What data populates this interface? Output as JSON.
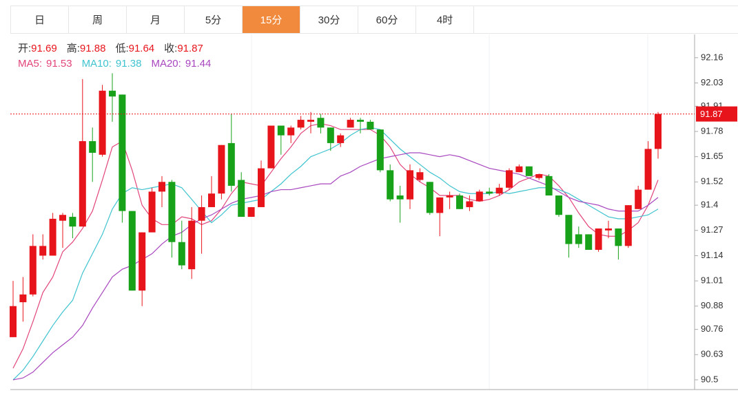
{
  "tabs": [
    "日",
    "周",
    "月",
    "5分",
    "15分",
    "30分",
    "60分",
    "4时"
  ],
  "active_tab": 4,
  "chart_data": {
    "type": "candlestick",
    "ohlc_labels": [
      "开:",
      "高:",
      "低:",
      "收:"
    ],
    "ohlc_values": [
      91.69,
      91.88,
      91.64,
      91.87
    ],
    "up_color": "#e8141c",
    "down_color": "#17a21a",
    "ylim": [
      90.45,
      92.28
    ],
    "yticks": [
      92.16,
      92.03,
      91.91,
      91.78,
      91.65,
      91.52,
      91.4,
      91.27,
      91.14,
      91.01,
      90.88,
      90.76,
      90.63,
      90.5
    ],
    "last_price": 91.87,
    "open": [
      90.72,
      90.9,
      90.94,
      91.14,
      91.14,
      91.32,
      91.34,
      91.29,
      91.73,
      91.66,
      91.99,
      91.97,
      91.37,
      90.96,
      91.26,
      91.47,
      91.52,
      91.21,
      91.07,
      91.32,
      91.39,
      91.46,
      91.72,
      91.53,
      91.34,
      91.39,
      91.59,
      91.81,
      91.76,
      91.8,
      91.83,
      91.85,
      91.8,
      91.72,
      91.8,
      91.84,
      91.83,
      91.79,
      91.58,
      91.45,
      91.43,
      91.53,
      91.52,
      91.36,
      91.44,
      91.45,
      91.39,
      91.42,
      91.47,
      91.46,
      91.49,
      91.57,
      91.6,
      91.54,
      91.55,
      91.45,
      91.35,
      91.25,
      91.25,
      91.17,
      91.27,
      91.28,
      91.19,
      91.38,
      91.48,
      91.69
    ],
    "high": [
      91.01,
      91.03,
      91.25,
      91.25,
      91.36,
      91.36,
      91.36,
      92.05,
      91.8,
      92.02,
      92.08,
      91.97,
      91.37,
      91.26,
      91.49,
      91.55,
      91.53,
      91.32,
      91.39,
      91.45,
      91.55,
      91.71,
      91.87,
      91.57,
      91.39,
      91.63,
      91.81,
      91.81,
      91.81,
      91.86,
      91.88,
      91.87,
      91.8,
      91.77,
      91.85,
      91.85,
      91.84,
      91.79,
      91.61,
      91.5,
      91.61,
      91.59,
      91.52,
      91.44,
      91.47,
      91.46,
      91.45,
      91.48,
      91.49,
      91.51,
      91.59,
      91.61,
      91.6,
      91.56,
      91.56,
      91.45,
      91.35,
      91.29,
      91.25,
      91.28,
      91.32,
      91.28,
      91.4,
      91.5,
      91.73,
      91.88
    ],
    "low": [
      90.72,
      90.8,
      90.93,
      91.12,
      91.14,
      91.18,
      91.23,
      91.29,
      91.52,
      91.65,
      91.83,
      91.31,
      90.96,
      90.88,
      91.26,
      91.39,
      91.13,
      91.07,
      91.02,
      91.15,
      91.39,
      91.43,
      91.47,
      91.34,
      91.34,
      91.39,
      91.59,
      91.66,
      91.72,
      91.79,
      91.77,
      91.77,
      91.68,
      91.7,
      91.8,
      91.77,
      91.79,
      91.57,
      91.42,
      91.31,
      91.38,
      91.52,
      91.35,
      91.24,
      91.38,
      91.38,
      91.37,
      91.42,
      91.45,
      91.45,
      91.48,
      91.57,
      91.55,
      91.53,
      91.45,
      91.34,
      91.13,
      91.18,
      91.17,
      91.16,
      91.23,
      91.12,
      91.18,
      91.38,
      91.48,
      91.64
    ],
    "close": [
      90.88,
      90.94,
      91.19,
      91.19,
      91.33,
      91.35,
      91.29,
      91.73,
      91.67,
      91.99,
      91.96,
      91.37,
      90.96,
      91.26,
      91.47,
      91.52,
      91.21,
      91.09,
      91.32,
      91.39,
      91.46,
      91.71,
      91.5,
      91.34,
      91.39,
      91.59,
      91.81,
      91.76,
      91.8,
      91.84,
      91.84,
      91.8,
      91.72,
      91.76,
      91.84,
      91.83,
      91.79,
      91.58,
      91.43,
      91.43,
      91.58,
      91.57,
      91.36,
      91.44,
      91.45,
      91.38,
      91.42,
      91.47,
      91.46,
      91.49,
      91.58,
      91.6,
      91.55,
      91.56,
      91.45,
      91.35,
      91.2,
      91.2,
      91.17,
      91.28,
      91.28,
      91.19,
      91.4,
      91.48,
      91.69,
      91.87
    ],
    "series": [
      {
        "name": "MA5:",
        "color": "#e2447c",
        "legend_value": 91.53,
        "values": [
          90.56,
          90.66,
          90.8,
          90.95,
          91.03,
          91.16,
          91.21,
          91.28,
          91.37,
          91.53,
          91.7,
          91.73,
          91.58,
          91.4,
          91.33,
          91.3,
          91.3,
          91.34,
          91.33,
          91.3,
          91.32,
          91.38,
          91.46,
          91.52,
          91.51,
          91.5,
          91.57,
          91.64,
          91.7,
          91.77,
          91.81,
          91.82,
          91.81,
          91.79,
          91.79,
          91.79,
          91.79,
          91.76,
          91.7,
          91.61,
          91.56,
          91.52,
          91.49,
          91.45,
          91.45,
          91.45,
          91.43,
          91.42,
          91.43,
          91.45,
          91.48,
          91.52,
          91.54,
          91.56,
          91.55,
          91.5,
          91.44,
          91.36,
          91.29,
          91.25,
          91.24,
          91.24,
          91.27,
          91.31,
          91.4,
          91.53
        ]
      },
      {
        "name": "MA10:",
        "color": "#3ec3cf",
        "legend_value": 91.38,
        "values": [
          90.5,
          90.55,
          90.62,
          90.7,
          90.78,
          90.85,
          90.91,
          91.05,
          91.15,
          91.25,
          91.38,
          91.46,
          91.49,
          91.48,
          91.49,
          91.5,
          91.51,
          91.49,
          91.43,
          91.37,
          91.31,
          91.35,
          91.4,
          91.41,
          91.42,
          91.43,
          91.47,
          91.51,
          91.56,
          91.6,
          91.65,
          91.67,
          91.69,
          91.72,
          91.76,
          91.79,
          91.8,
          91.79,
          91.74,
          91.69,
          91.65,
          91.61,
          91.57,
          91.54,
          91.5,
          91.47,
          91.46,
          91.46,
          91.46,
          91.47,
          91.46,
          91.47,
          91.48,
          91.49,
          91.49,
          91.48,
          91.46,
          91.43,
          91.4,
          91.37,
          91.34,
          91.33,
          91.33,
          91.34,
          91.35,
          91.38
        ]
      },
      {
        "name": "MA20:",
        "color": "#a846bf",
        "legend_value": 91.44,
        "values": [
          90.5,
          90.51,
          90.54,
          90.59,
          90.64,
          90.68,
          90.72,
          90.78,
          90.87,
          90.95,
          91.03,
          91.07,
          91.09,
          91.12,
          91.15,
          91.2,
          91.24,
          91.26,
          91.3,
          91.33,
          91.35,
          91.38,
          91.41,
          91.43,
          91.44,
          91.45,
          91.47,
          91.48,
          91.48,
          91.49,
          91.5,
          91.51,
          91.51,
          91.55,
          91.57,
          91.6,
          91.62,
          91.64,
          91.65,
          91.66,
          91.67,
          91.67,
          91.66,
          91.65,
          91.66,
          91.65,
          91.63,
          91.61,
          91.59,
          91.58,
          91.57,
          91.56,
          91.54,
          91.52,
          91.5,
          91.47,
          91.44,
          91.42,
          91.41,
          91.4,
          91.38,
          91.37,
          91.37,
          91.37,
          91.4,
          91.44
        ]
      }
    ]
  }
}
